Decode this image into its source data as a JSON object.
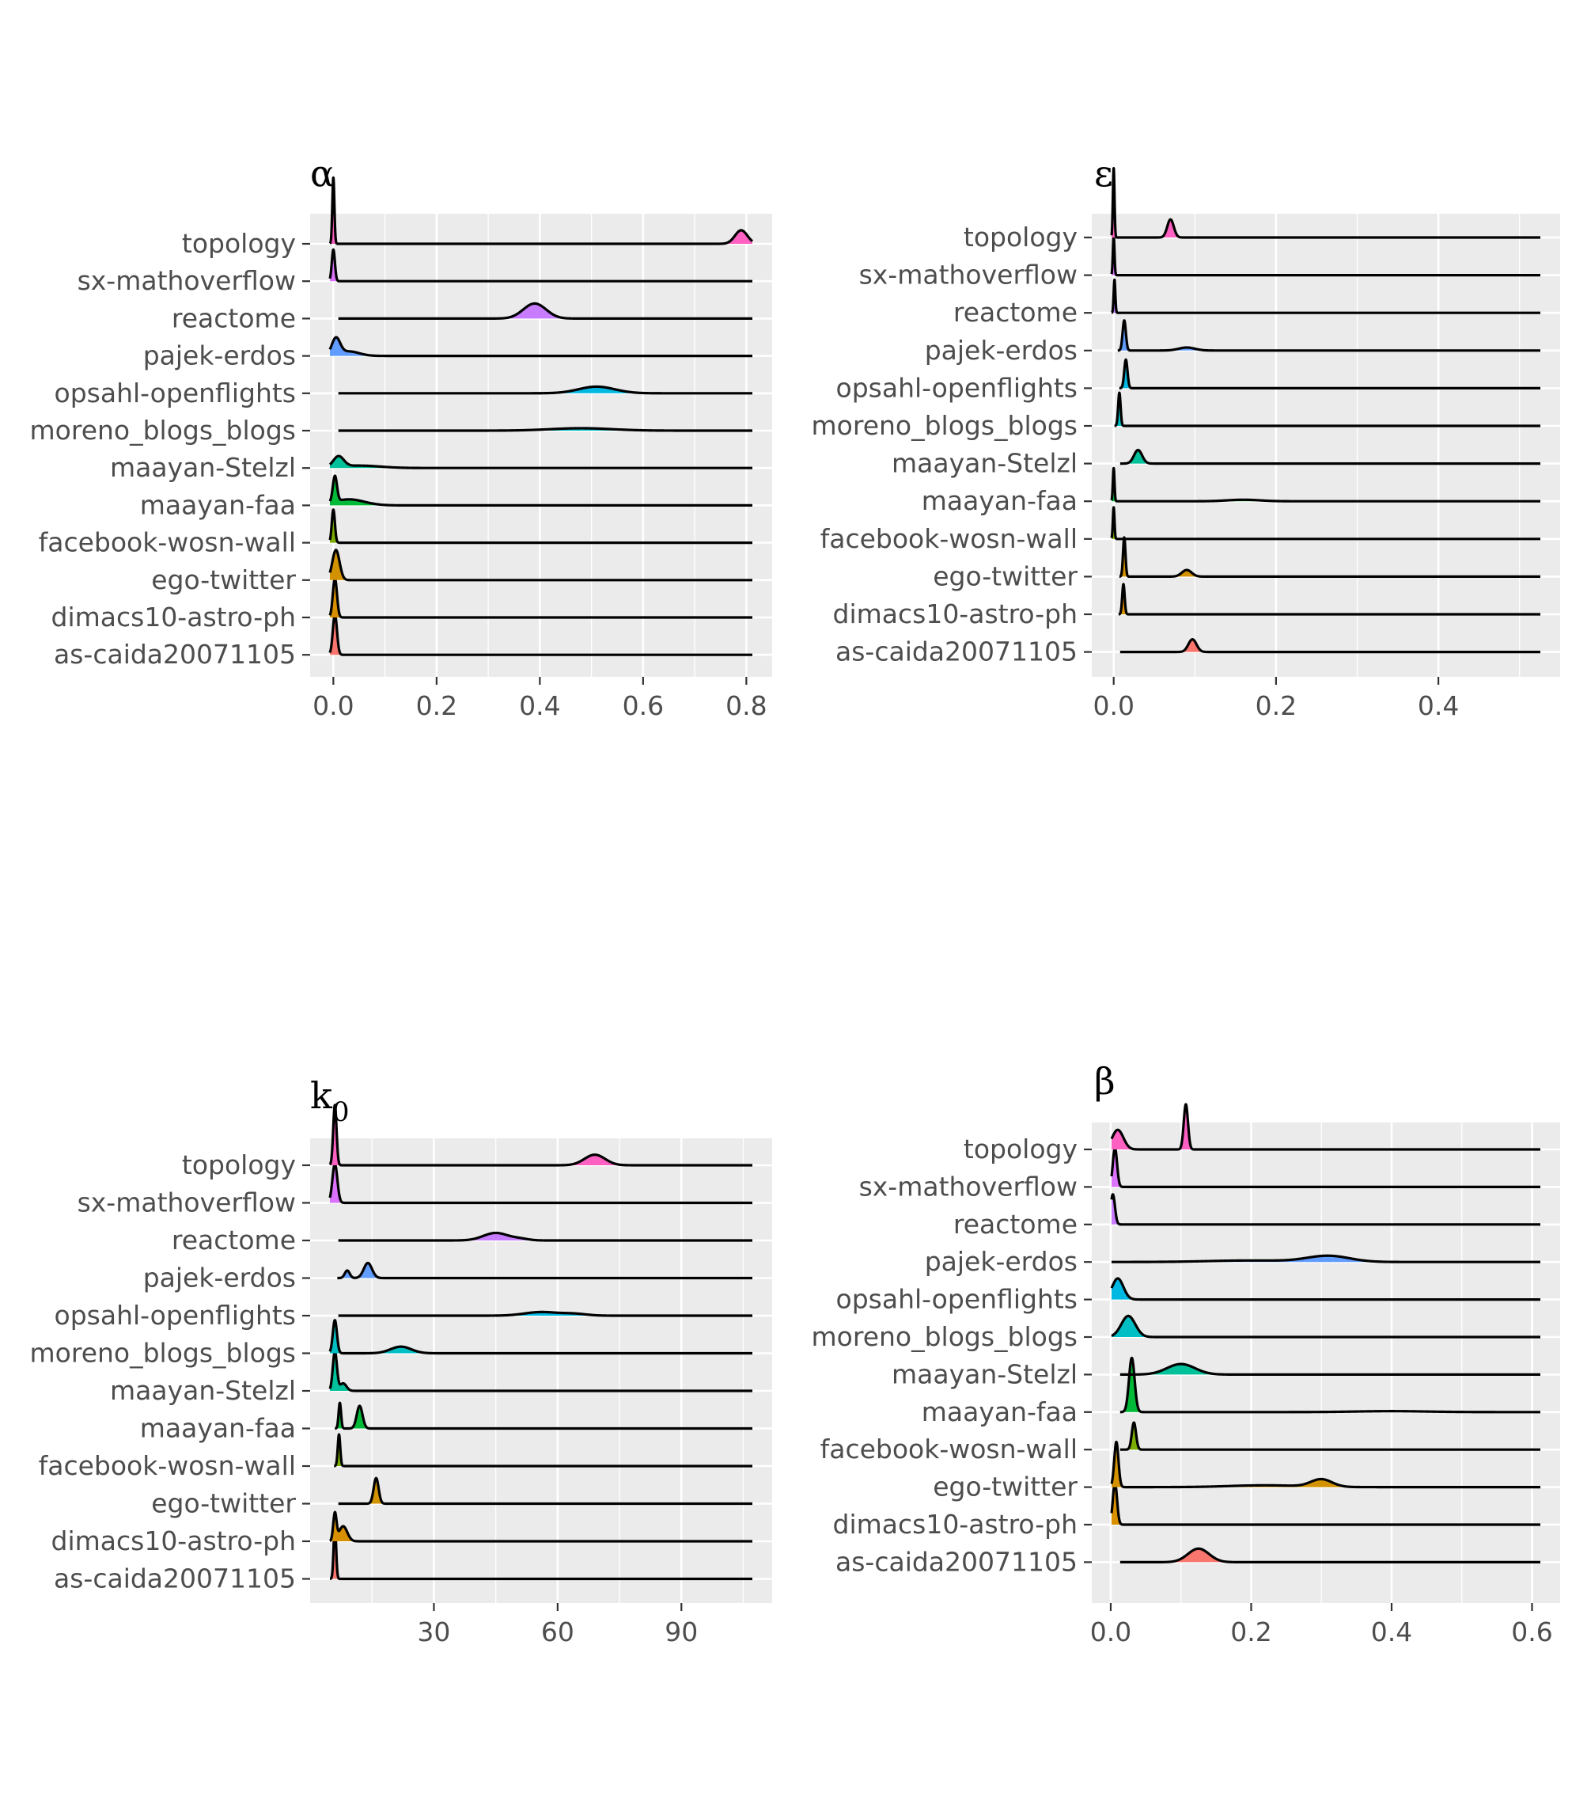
{
  "categories": [
    "topology",
    "sx-mathoverflow",
    "reactome",
    "pajek-erdos",
    "opsahl-openflights",
    "moreno_blogs_blogs",
    "maayan-Stelzl",
    "maayan-faa",
    "facebook-wosn-wall",
    "ego-twitter",
    "dimacs10-astro-ph",
    "as-caida20071105"
  ],
  "colors": {
    "topology": "#FF61C3",
    "sx-mathoverflow": "#DB72FB",
    "reactome": "#C77CFF",
    "pajek-erdos": "#619CFF",
    "opsahl-openflights": "#00B9E3",
    "moreno_blogs_blogs": "#00BFC4",
    "maayan-Stelzl": "#00C19A",
    "maayan-faa": "#00BA38",
    "facebook-wosn-wall": "#7CAE00",
    "ego-twitter": "#D39200",
    "dimacs10-astro-ph": "#D89000",
    "as-caida20071105": "#F8766D",
    "panel_bg": "#EBEBEB",
    "grid": "#FFFFFF"
  },
  "chart_data": [
    {
      "type": "area",
      "title": "α",
      "xlim": [
        -0.045,
        0.85
      ],
      "xticks": [
        0.0,
        0.2,
        0.4,
        0.6,
        0.8
      ],
      "xtick_labels": [
        "0.0",
        "0.2",
        "0.4",
        "0.6",
        "0.8"
      ],
      "xlabel": "",
      "ylabel": "",
      "grid": true,
      "series": [
        {
          "category": "topology",
          "peaks": [
            {
              "mu": 0.0,
              "sd": 0.002,
              "h": 2.2
            },
            {
              "mu": 0.79,
              "sd": 0.012,
              "h": 0.45
            }
          ]
        },
        {
          "category": "sx-mathoverflow",
          "peaks": [
            {
              "mu": 0.0,
              "sd": 0.003,
              "h": 1.05
            }
          ]
        },
        {
          "category": "reactome",
          "peaks": [
            {
              "mu": 0.39,
              "sd": 0.022,
              "h": 0.5
            }
          ]
        },
        {
          "category": "pajek-erdos",
          "peaks": [
            {
              "mu": 0.005,
              "sd": 0.008,
              "h": 0.55
            },
            {
              "mu": 0.03,
              "sd": 0.02,
              "h": 0.15
            }
          ]
        },
        {
          "category": "opsahl-openflights",
          "peaks": [
            {
              "mu": 0.51,
              "sd": 0.035,
              "h": 0.22
            }
          ]
        },
        {
          "category": "moreno_blogs_blogs",
          "peaks": [
            {
              "mu": 0.48,
              "sd": 0.06,
              "h": 0.08
            }
          ]
        },
        {
          "category": "maayan-Stelzl",
          "peaks": [
            {
              "mu": 0.01,
              "sd": 0.01,
              "h": 0.35
            },
            {
              "mu": 0.05,
              "sd": 0.04,
              "h": 0.08
            }
          ]
        },
        {
          "category": "maayan-faa",
          "peaks": [
            {
              "mu": 0.003,
              "sd": 0.004,
              "h": 0.85
            },
            {
              "mu": 0.03,
              "sd": 0.03,
              "h": 0.2
            }
          ]
        },
        {
          "category": "facebook-wosn-wall",
          "peaks": [
            {
              "mu": 0.0,
              "sd": 0.003,
              "h": 1.1
            }
          ]
        },
        {
          "category": "ego-twitter",
          "peaks": [
            {
              "mu": 0.005,
              "sd": 0.007,
              "h": 1.0
            }
          ]
        },
        {
          "category": "dimacs10-astro-ph",
          "peaks": [
            {
              "mu": 0.003,
              "sd": 0.004,
              "h": 1.3
            }
          ]
        },
        {
          "category": "as-caida20071105",
          "peaks": [
            {
              "mu": 0.003,
              "sd": 0.004,
              "h": 1.35
            }
          ]
        }
      ]
    },
    {
      "type": "area",
      "title": "ε",
      "xlim": [
        -0.027,
        0.55
      ],
      "xticks": [
        0.0,
        0.2,
        0.4
      ],
      "xtick_labels": [
        "0.0",
        "0.2",
        "0.4"
      ],
      "xlabel": "",
      "ylabel": "",
      "grid": true,
      "series": [
        {
          "category": "topology",
          "peaks": [
            {
              "mu": 0.0,
              "sd": 0.001,
              "h": 2.3
            },
            {
              "mu": 0.07,
              "sd": 0.004,
              "h": 0.6
            }
          ]
        },
        {
          "category": "sx-mathoverflow",
          "peaks": [
            {
              "mu": 0.0,
              "sd": 0.001,
              "h": 1.3
            }
          ]
        },
        {
          "category": "reactome",
          "peaks": [
            {
              "mu": 0.001,
              "sd": 0.001,
              "h": 1.1
            }
          ]
        },
        {
          "category": "pajek-erdos",
          "peaks": [
            {
              "mu": 0.013,
              "sd": 0.002,
              "h": 1.0
            },
            {
              "mu": 0.09,
              "sd": 0.01,
              "h": 0.1
            }
          ]
        },
        {
          "category": "opsahl-openflights",
          "peaks": [
            {
              "mu": 0.015,
              "sd": 0.002,
              "h": 0.95
            }
          ]
        },
        {
          "category": "moreno_blogs_blogs",
          "peaks": [
            {
              "mu": 0.007,
              "sd": 0.0015,
              "h": 1.1
            }
          ]
        },
        {
          "category": "maayan-Stelzl",
          "peaks": [
            {
              "mu": 0.03,
              "sd": 0.005,
              "h": 0.45
            }
          ]
        },
        {
          "category": "maayan-faa",
          "peaks": [
            {
              "mu": 0.0,
              "sd": 0.001,
              "h": 1.1
            },
            {
              "mu": 0.16,
              "sd": 0.02,
              "h": 0.05
            }
          ]
        },
        {
          "category": "facebook-wosn-wall",
          "peaks": [
            {
              "mu": 0.0,
              "sd": 0.001,
              "h": 1.05
            }
          ]
        },
        {
          "category": "ego-twitter",
          "peaks": [
            {
              "mu": 0.013,
              "sd": 0.0015,
              "h": 1.3
            },
            {
              "mu": 0.09,
              "sd": 0.006,
              "h": 0.22
            }
          ]
        },
        {
          "category": "dimacs10-astro-ph",
          "peaks": [
            {
              "mu": 0.012,
              "sd": 0.0015,
              "h": 1.0
            }
          ]
        },
        {
          "category": "as-caida20071105",
          "peaks": [
            {
              "mu": 0.097,
              "sd": 0.005,
              "h": 0.42
            }
          ]
        }
      ]
    },
    {
      "type": "area",
      "title": "k",
      "title_subscript": "0",
      "xlim": [
        0,
        112
      ],
      "xticks": [
        30,
        60,
        90
      ],
      "xtick_labels": [
        "30",
        "60",
        "90"
      ],
      "xlabel": "",
      "ylabel": "",
      "grid": true,
      "series": [
        {
          "category": "topology",
          "peaks": [
            {
              "mu": 6,
              "sd": 0.4,
              "h": 2.0
            },
            {
              "mu": 69,
              "sd": 2.5,
              "h": 0.35
            }
          ]
        },
        {
          "category": "sx-mathoverflow",
          "peaks": [
            {
              "mu": 6,
              "sd": 0.6,
              "h": 1.3
            }
          ]
        },
        {
          "category": "reactome",
          "peaks": [
            {
              "mu": 45,
              "sd": 3,
              "h": 0.25
            },
            {
              "mu": 51,
              "sd": 2,
              "h": 0.05
            }
          ]
        },
        {
          "category": "pajek-erdos",
          "peaks": [
            {
              "mu": 9,
              "sd": 0.6,
              "h": 0.25
            },
            {
              "mu": 14,
              "sd": 1,
              "h": 0.5
            }
          ]
        },
        {
          "category": "opsahl-openflights",
          "peaks": [
            {
              "mu": 56,
              "sd": 4,
              "h": 0.12
            },
            {
              "mu": 64,
              "sd": 3,
              "h": 0.06
            }
          ]
        },
        {
          "category": "moreno_blogs_blogs",
          "peaks": [
            {
              "mu": 6,
              "sd": 0.5,
              "h": 1.1
            },
            {
              "mu": 22,
              "sd": 2.5,
              "h": 0.22
            }
          ]
        },
        {
          "category": "maayan-Stelzl",
          "peaks": [
            {
              "mu": 6,
              "sd": 0.5,
              "h": 1.3
            },
            {
              "mu": 8,
              "sd": 0.8,
              "h": 0.25
            }
          ]
        },
        {
          "category": "maayan-faa",
          "peaks": [
            {
              "mu": 7.2,
              "sd": 0.3,
              "h": 0.85
            },
            {
              "mu": 12,
              "sd": 0.7,
              "h": 0.75
            }
          ]
        },
        {
          "category": "facebook-wosn-wall",
          "peaks": [
            {
              "mu": 7,
              "sd": 0.3,
              "h": 1.05
            }
          ]
        },
        {
          "category": "ego-twitter",
          "peaks": [
            {
              "mu": 16,
              "sd": 0.6,
              "h": 0.85
            }
          ]
        },
        {
          "category": "dimacs10-astro-ph",
          "peaks": [
            {
              "mu": 6,
              "sd": 0.4,
              "h": 0.9
            },
            {
              "mu": 8,
              "sd": 1,
              "h": 0.5
            }
          ]
        },
        {
          "category": "as-caida20071105",
          "peaks": [
            {
              "mu": 6,
              "sd": 0.3,
              "h": 1.8
            }
          ]
        }
      ]
    },
    {
      "type": "area",
      "title": "β",
      "xlim": [
        -0.027,
        0.64
      ],
      "xticks": [
        0.0,
        0.2,
        0.4,
        0.6
      ],
      "xtick_labels": [
        "0.0",
        "0.2",
        "0.4",
        "0.6"
      ],
      "xlabel": "",
      "ylabel": "",
      "grid": true,
      "series": [
        {
          "category": "topology",
          "peaks": [
            {
              "mu": 0.01,
              "sd": 0.008,
              "h": 0.65
            },
            {
              "mu": 0.107,
              "sd": 0.003,
              "h": 1.5
            }
          ]
        },
        {
          "category": "sx-mathoverflow",
          "peaks": [
            {
              "mu": 0.006,
              "sd": 0.003,
              "h": 1.3
            }
          ]
        },
        {
          "category": "reactome",
          "peaks": [
            {
              "mu": 0.003,
              "sd": 0.003,
              "h": 1.0
            }
          ]
        },
        {
          "category": "pajek-erdos",
          "peaks": [
            {
              "mu": 0.31,
              "sd": 0.03,
              "h": 0.2
            },
            {
              "mu": 0.2,
              "sd": 0.06,
              "h": 0.05
            }
          ]
        },
        {
          "category": "opsahl-openflights",
          "peaks": [
            {
              "mu": 0.01,
              "sd": 0.008,
              "h": 0.7
            }
          ]
        },
        {
          "category": "moreno_blogs_blogs",
          "peaks": [
            {
              "mu": 0.025,
              "sd": 0.01,
              "h": 0.7
            }
          ]
        },
        {
          "category": "maayan-Stelzl",
          "peaks": [
            {
              "mu": 0.1,
              "sd": 0.02,
              "h": 0.35
            }
          ]
        },
        {
          "category": "maayan-faa",
          "peaks": [
            {
              "mu": 0.03,
              "sd": 0.004,
              "h": 1.8
            },
            {
              "mu": 0.4,
              "sd": 0.05,
              "h": 0.03
            }
          ]
        },
        {
          "category": "facebook-wosn-wall",
          "peaks": [
            {
              "mu": 0.033,
              "sd": 0.003,
              "h": 0.9
            }
          ]
        },
        {
          "category": "ego-twitter",
          "peaks": [
            {
              "mu": 0.008,
              "sd": 0.003,
              "h": 1.5
            },
            {
              "mu": 0.3,
              "sd": 0.015,
              "h": 0.25
            },
            {
              "mu": 0.22,
              "sd": 0.05,
              "h": 0.06
            }
          ]
        },
        {
          "category": "dimacs10-astro-ph",
          "peaks": [
            {
              "mu": 0.006,
              "sd": 0.003,
              "h": 1.4
            }
          ]
        },
        {
          "category": "as-caida20071105",
          "peaks": [
            {
              "mu": 0.125,
              "sd": 0.015,
              "h": 0.45
            }
          ]
        }
      ]
    }
  ]
}
